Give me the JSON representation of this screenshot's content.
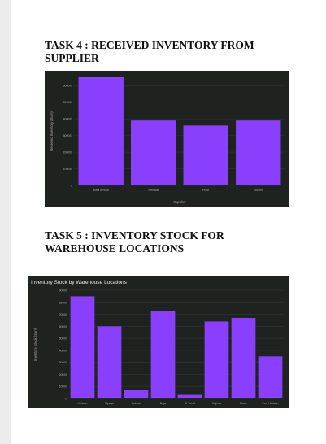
{
  "headings": {
    "task4": "TASK 4 : RECEIVED INVENTORY FROM SUPPLIER",
    "task5": "TASK 5 : INVENTORY STOCK FOR WAREHOUSE LOCATIONS"
  },
  "colors": {
    "bar": "#8a3ffc",
    "chart_background": "#1f2320",
    "gridline": "#2f3530",
    "text": "#a9a9a9",
    "page": "#ffffff"
  },
  "chart_data": [
    {
      "type": "bar",
      "title": "",
      "xlabel": "Supplier",
      "ylabel": "Received Inventory (Sum)",
      "categories": [
        "Keta Arroca",
        "Nevada",
        "Pisor",
        "Suvell"
      ],
      "values": [
        650000,
        390000,
        360000,
        390000
      ],
      "ylim": [
        0,
        650000
      ],
      "yticks": [
        0,
        100000,
        200000,
        300000,
        400000,
        500000,
        600000
      ],
      "ytick_labels": [
        "0",
        "100000",
        "200000",
        "300000",
        "400000",
        "500000",
        "600000"
      ],
      "grid": true,
      "legend": "none"
    },
    {
      "type": "bar",
      "title": "Inventory Stock by Warehouse Locations",
      "xlabel": "",
      "ylabel": "Inventory Stock (Sum)",
      "categories": [
        "Heiwan",
        "Nyago",
        "Caldon",
        "Beja",
        "St Turell",
        "Kajima",
        "Roeo",
        "Port Hudson"
      ],
      "values": [
        85000,
        60000,
        7000,
        73000,
        3000,
        64000,
        67000,
        35000
      ],
      "ylim": [
        0,
        90000
      ],
      "yticks": [
        0,
        10000,
        20000,
        30000,
        40000,
        50000,
        60000,
        70000,
        80000,
        90000
      ],
      "ytick_labels": [
        "0",
        "10000",
        "20000",
        "30000",
        "40000",
        "50000",
        "60000",
        "70000",
        "80000",
        "90000"
      ],
      "grid": true,
      "legend": "none"
    }
  ]
}
